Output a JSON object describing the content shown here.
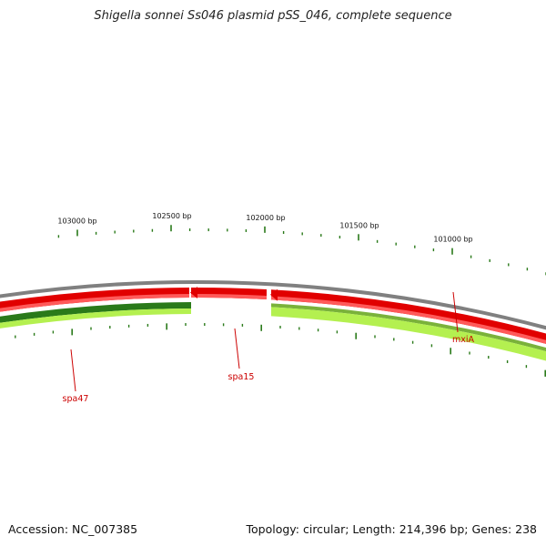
{
  "title": "Shigella sonnei Ss046 plasmid pSS_046, complete sequence",
  "footer": {
    "accession": "Accession: NC_007385",
    "summary": "Topology: circular; Length: 214,396 bp; Genes: 238"
  },
  "ruler": {
    "ticks": [
      "103000 bp",
      "102500 bp",
      "102000 bp",
      "101500 bp",
      "101000 bp"
    ]
  },
  "genes": [
    "spa47",
    "spa15",
    "mxiA"
  ],
  "colors": {
    "backbone": "#808080",
    "gene_forward": "#e10000",
    "gene_forward_light": "#ff5a5a",
    "gene_reverse_dark": "#2a7a1a",
    "gene_reverse_light": "#b4f050",
    "tick": "#2a7a1a",
    "label_line": "#cc0000"
  }
}
